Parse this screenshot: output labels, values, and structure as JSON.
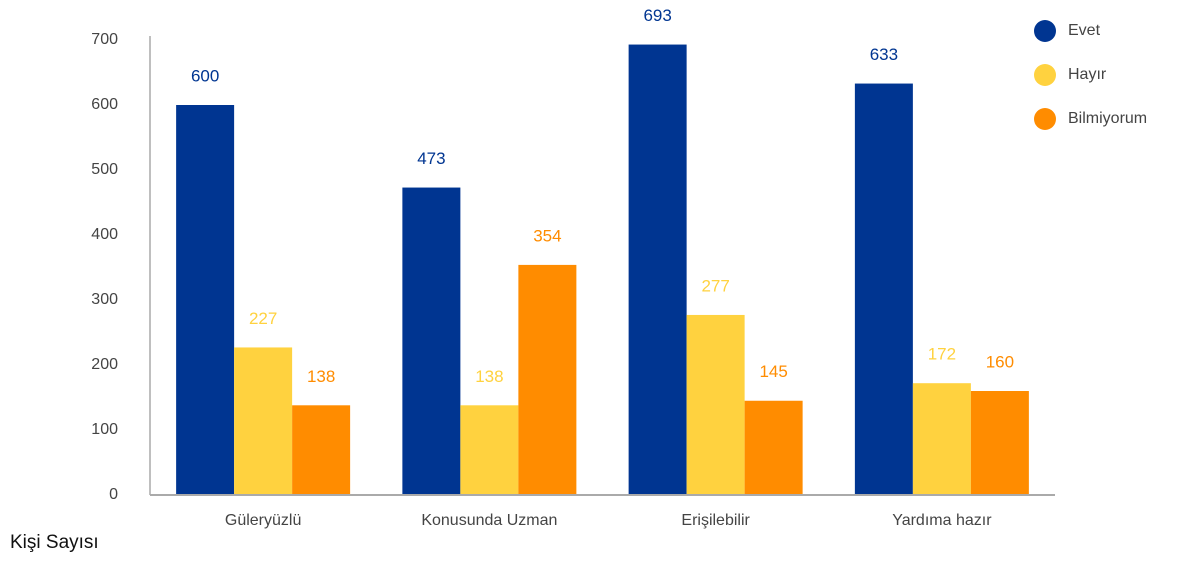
{
  "chart_data": {
    "type": "bar",
    "y_label": "Kişi Sayısı",
    "categories": [
      "Güleryüzlü",
      "Konusunda Uzman",
      "Erişilebilir",
      "Yardıma hazır"
    ],
    "series": [
      {
        "name": "Evet",
        "color": "#003591",
        "values": [
          600,
          473,
          693,
          633
        ]
      },
      {
        "name": "Hayır",
        "color": "#ffd23f",
        "values": [
          227,
          138,
          277,
          172
        ]
      },
      {
        "name": "Bilmiyorum",
        "color": "#ff8c00",
        "values": [
          138,
          354,
          145,
          160
        ]
      }
    ],
    "ylim": [
      0,
      700
    ],
    "yticks": [
      0,
      100,
      200,
      300,
      400,
      500,
      600,
      700
    ],
    "grid": false,
    "legend": "top-right",
    "data_labels": true
  }
}
